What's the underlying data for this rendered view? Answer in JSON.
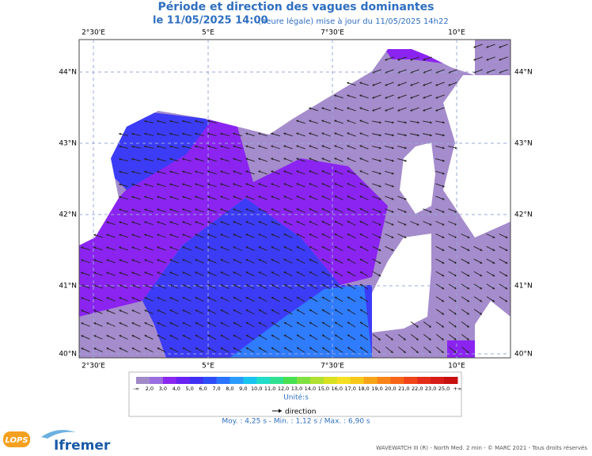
{
  "header": {
    "title": "Période et direction des vagues dominantes",
    "date": "le 11/05/2025 14:00",
    "note": "(heure légale) mise à jour du 11/05/2025 14h22"
  },
  "map": {
    "lon_labels": [
      "2°30'E",
      "5°E",
      "7°30'E",
      "10°E"
    ],
    "lat_labels": [
      "44°N",
      "43°N",
      "42°N",
      "41°N",
      "40°N"
    ]
  },
  "colorbar": {
    "labels": [
      "-∞",
      "2,0",
      "3,0",
      "4,0",
      "5,0",
      "6,0",
      "7,0",
      "8,0",
      "9,0",
      "10,0",
      "11,0",
      "12,0",
      "13,0",
      "14,0",
      "15,0",
      "16,0",
      "17,0",
      "18,0",
      "19,0",
      "20,0",
      "21,0",
      "22,0",
      "23,0",
      "25,0",
      "+∞"
    ],
    "colors": [
      "#a08ac8",
      "#9a6ee0",
      "#8a28f0",
      "#6a22f4",
      "#4030f4",
      "#2e4cf8",
      "#2a74ff",
      "#2a9cff",
      "#18c4f0",
      "#20dcc8",
      "#30e090",
      "#48e050",
      "#80e040",
      "#b0e030",
      "#d8e020",
      "#f4e020",
      "#f8c818",
      "#f8a418",
      "#f88418",
      "#f86418",
      "#f04418",
      "#e42c18",
      "#d81c18",
      "#c81010"
    ],
    "unit": "Unité:s"
  },
  "legend": {
    "direction": "direction"
  },
  "stats": "Moy. : 4,25 s  -  Min. : 1,12 s / Max. : 6,90 s",
  "footer": "WAVEWATCH III (R) - North Med. 2 min - © MARC 2021 - Tous droits réservés",
  "logos": {
    "lops": "LOPS",
    "ifremer": "Ifremer"
  }
}
